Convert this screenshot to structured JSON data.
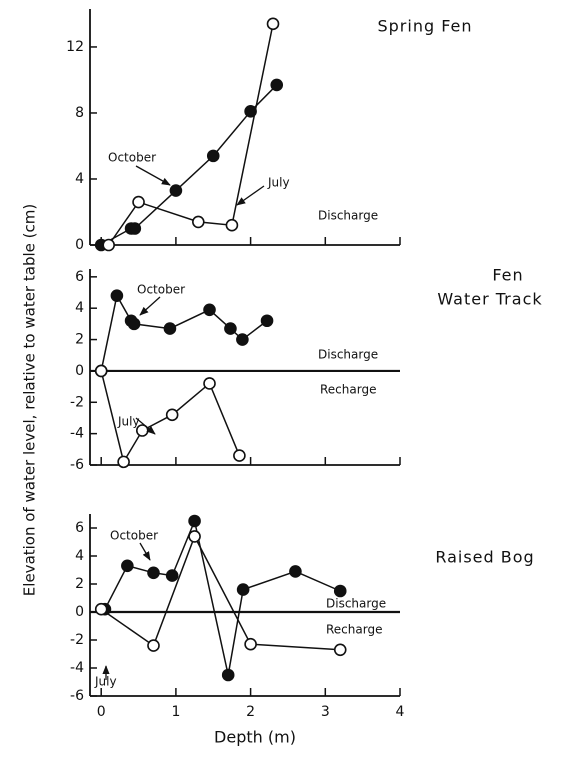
{
  "chart_data": [
    {
      "type": "line",
      "title": [
        "Spring Fen"
      ],
      "xlim": [
        -0.15,
        4
      ],
      "xticks": [
        0,
        1,
        2,
        3,
        4
      ],
      "ylim": [
        0,
        14.3
      ],
      "yticks": [
        0,
        4,
        8,
        12
      ],
      "series": [
        {
          "name": "October",
          "marker": "filled",
          "color": "#111111",
          "x": [
            0,
            0.4,
            0.45,
            1.0,
            1.5,
            2.0,
            2.35
          ],
          "values": [
            0,
            1,
            1,
            3.3,
            5.4,
            8.1,
            9.7
          ]
        },
        {
          "name": "July",
          "marker": "open",
          "color": "#111111",
          "x": [
            0.1,
            0.5,
            1.3,
            1.75,
            2.3
          ],
          "values": [
            0,
            2.6,
            1.4,
            1.2,
            13.4
          ]
        }
      ],
      "annotations": [
        "October",
        "July",
        "Discharge"
      ]
    },
    {
      "type": "line",
      "title": [
        "Fen",
        "Water Track"
      ],
      "y_label": "Elevation of water level, relative to water table (cm)",
      "xlim": [
        -0.15,
        4
      ],
      "xticks": [
        0,
        1,
        2,
        3,
        4
      ],
      "ylim": [
        -6,
        6.5
      ],
      "yticks": [
        6,
        4,
        2,
        0,
        -2,
        -4,
        -6
      ],
      "series": [
        {
          "name": "October",
          "marker": "filled",
          "color": "#111111",
          "x": [
            0,
            0.21,
            0.4,
            0.44,
            0.92,
            1.45,
            1.73,
            1.89,
            2.22
          ],
          "values": [
            0,
            4.8,
            3.2,
            3.0,
            2.7,
            3.9,
            2.7,
            2.0,
            3.2
          ]
        },
        {
          "name": "July",
          "marker": "open",
          "color": "#111111",
          "x": [
            0,
            0.3,
            0.55,
            0.95,
            1.45,
            1.85
          ],
          "values": [
            0,
            -5.8,
            -3.8,
            -2.8,
            -0.8,
            -5.4
          ]
        }
      ],
      "annotations": [
        "October",
        "Discharge",
        "Recharge",
        "July"
      ]
    },
    {
      "type": "line",
      "title": [
        "Raised Bog"
      ],
      "x_label": "Depth (m)",
      "xlim": [
        -0.15,
        4
      ],
      "xticks": [
        0,
        1,
        2,
        3,
        4
      ],
      "ylim": [
        -6,
        7
      ],
      "yticks": [
        6,
        4,
        2,
        0,
        -2,
        -4,
        -6
      ],
      "series": [
        {
          "name": "October",
          "marker": "filled",
          "color": "#111111",
          "x": [
            0.05,
            0.35,
            0.7,
            0.95,
            1.25,
            1.7,
            1.9,
            2.6,
            3.2
          ],
          "values": [
            0.2,
            3.3,
            2.8,
            2.6,
            6.5,
            -4.5,
            1.6,
            2.9,
            1.5
          ]
        },
        {
          "name": "July",
          "marker": "open",
          "color": "#111111",
          "x": [
            0,
            0.7,
            1.25,
            2.0,
            3.2
          ],
          "values": [
            0.2,
            -2.4,
            5.4,
            -2.3,
            -2.7
          ]
        }
      ],
      "annotations": [
        "October",
        "Discharge",
        "Recharge",
        "July"
      ]
    }
  ]
}
